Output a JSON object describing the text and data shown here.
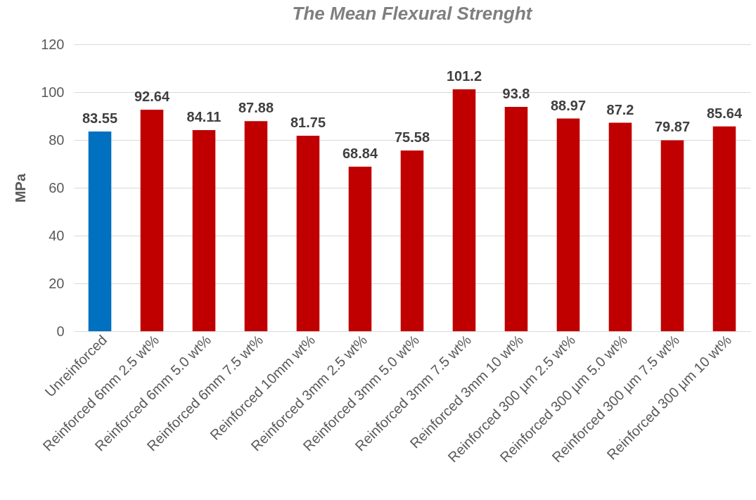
{
  "chart_data": {
    "type": "bar",
    "title": "The Mean Flexural Strenght",
    "ylabel": "MPa",
    "categories": [
      "Unreinforced",
      "Reinforced 6mm 2.5 wt%",
      "Reinforced 6mm 5.0 wt%",
      "Reinforced 6mm 7.5 wt%",
      "Reinforced 10mm wt%",
      "Reinforced 3mm 2.5 wt%",
      "Reinforced 3mm 5.0 wt%",
      "Reinforced 3mm 7.5 wt%",
      "Reinforced 3mm 10 wt%",
      "Reinforced 300 µm 2.5 wt%",
      "Reinforced 300 µm 5.0 wt%",
      "Reinforced 300 µm 7.5 wt%",
      "Reinforced 300 µm 10 wt%"
    ],
    "values": [
      83.55,
      92.64,
      84.11,
      87.88,
      81.75,
      68.84,
      75.58,
      101.2,
      93.8,
      88.97,
      87.2,
      79.87,
      85.64
    ],
    "colors": [
      "#0070c0",
      "#c00000",
      "#c00000",
      "#c00000",
      "#c00000",
      "#c00000",
      "#c00000",
      "#c00000",
      "#c00000",
      "#c00000",
      "#c00000",
      "#c00000",
      "#c00000"
    ],
    "ylim": [
      0,
      120
    ],
    "yticks": [
      0,
      20,
      40,
      60,
      80,
      100,
      120
    ],
    "grid": "y",
    "data_labels": true
  }
}
